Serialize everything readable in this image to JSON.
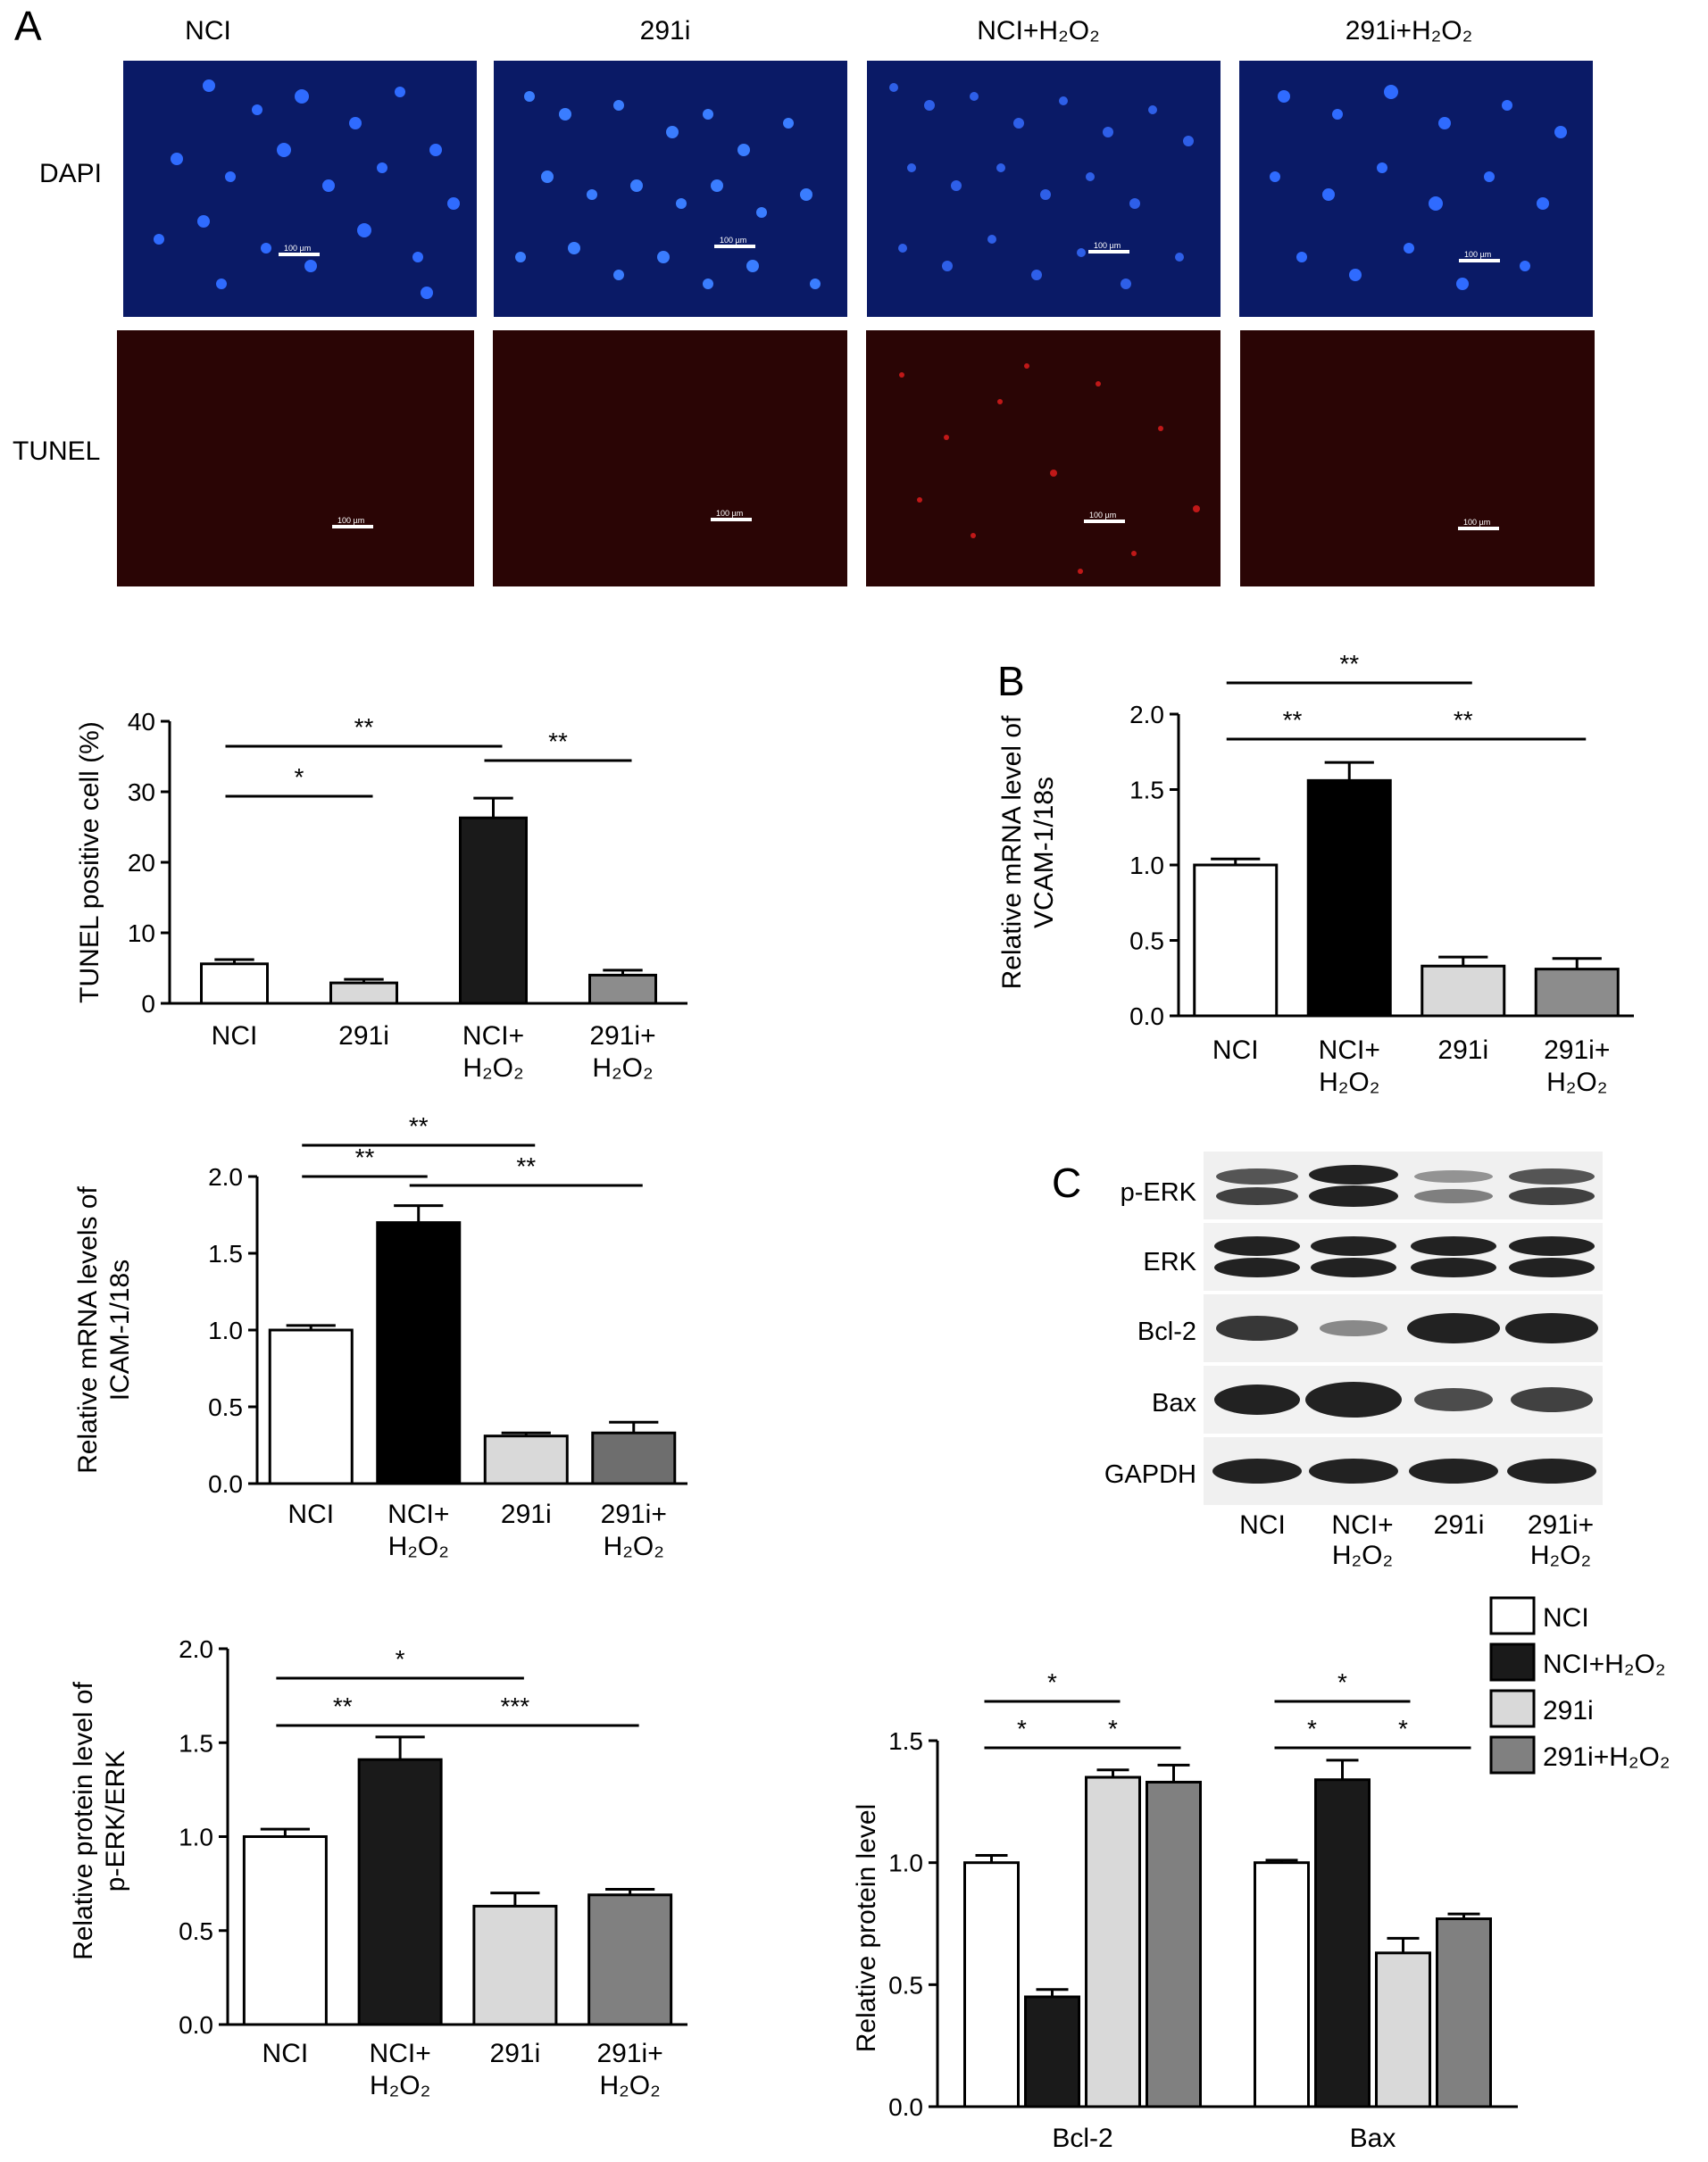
{
  "panels": {
    "a": "A",
    "b": "B",
    "c": "C"
  },
  "micrograph": {
    "columns": [
      "NCI",
      "291i",
      "NCI+H₂O₂",
      "291i+H₂O₂"
    ],
    "rows": [
      "DAPI",
      "TUNEL"
    ],
    "scale_bar": "100 µm",
    "colors": {
      "dapi": "#0a1a66",
      "tunel": "#2a0505"
    }
  },
  "blot": {
    "rows": [
      "p-ERK",
      "ERK",
      "Bcl-2",
      "Bax",
      "GAPDH"
    ],
    "lanes": [
      "NCI",
      "NCI+\nH₂O₂",
      "291i",
      "291i+\nH₂O₂"
    ]
  },
  "chart_data": [
    {
      "id": "tunel",
      "type": "bar",
      "categories": [
        "NCI",
        "291i",
        "NCI+\nH₂O₂",
        "291i+\nH₂O₂"
      ],
      "values": [
        5.6,
        2.9,
        26.3,
        4.0
      ],
      "errors": [
        0.6,
        0.5,
        2.8,
        0.7
      ],
      "colors": [
        "#ffffff",
        "#d9d9d9",
        "#1a1a1a",
        "#8c8c8c"
      ],
      "ylabel": "TUNEL positive cell (%)",
      "ylim": [
        0,
        40
      ],
      "yticks": [
        "0",
        "10",
        "20",
        "30",
        "40"
      ],
      "significance": [
        {
          "from": 0,
          "to": 1,
          "label": "*"
        },
        {
          "from": 0,
          "to": 2,
          "label": "**"
        },
        {
          "from": 2,
          "to": 3,
          "label": "**"
        }
      ]
    },
    {
      "id": "vcam",
      "type": "bar",
      "categories": [
        "NCI",
        "NCI+\nH₂O₂",
        "291i",
        "291i+\nH₂O₂"
      ],
      "values": [
        1.0,
        1.56,
        0.33,
        0.31
      ],
      "errors": [
        0.04,
        0.12,
        0.06,
        0.07
      ],
      "colors": [
        "#ffffff",
        "#000000",
        "#d9d9d9",
        "#8c8c8c"
      ],
      "ylabel": "Relative mRNA level of\nVCAM-1/18s",
      "ylim": [
        0,
        2.0
      ],
      "yticks": [
        "0.0",
        "0.5",
        "1.0",
        "1.5",
        "2.0"
      ],
      "significance": [
        {
          "from": 0,
          "to": 2,
          "label": "**"
        },
        {
          "from": 0,
          "to": 1,
          "label": "**"
        },
        {
          "from": 1,
          "to": 3,
          "label": "**"
        }
      ]
    },
    {
      "id": "icam",
      "type": "bar",
      "categories": [
        "NCI",
        "NCI+\nH₂O₂",
        "291i",
        "291i+\nH₂O₂"
      ],
      "values": [
        1.0,
        1.7,
        0.31,
        0.33
      ],
      "errors": [
        0.03,
        0.11,
        0.02,
        0.07
      ],
      "colors": [
        "#ffffff",
        "#000000",
        "#d9d9d9",
        "#6e6e6e"
      ],
      "ylabel": "Relative mRNA levels of\nICAM-1/18s",
      "ylim": [
        0,
        2.0
      ],
      "yticks": [
        "0.0",
        "0.5",
        "1.0",
        "1.5",
        "2.0"
      ],
      "significance": [
        {
          "from": 0,
          "to": 2,
          "label": "**"
        },
        {
          "from": 0,
          "to": 1,
          "label": "**"
        },
        {
          "from": 1,
          "to": 3,
          "label": "**"
        }
      ]
    },
    {
      "id": "perk",
      "type": "bar",
      "categories": [
        "NCI",
        "NCI+\nH₂O₂",
        "291i",
        "291i+\nH₂O₂"
      ],
      "values": [
        1.0,
        1.41,
        0.63,
        0.69
      ],
      "errors": [
        0.04,
        0.12,
        0.07,
        0.03
      ],
      "colors": [
        "#ffffff",
        "#1a1a1a",
        "#d9d9d9",
        "#808080"
      ],
      "ylabel": "Relative protein level of\np-ERK/ERK",
      "ylim": [
        0,
        2.0
      ],
      "yticks": [
        "0.0",
        "0.5",
        "1.0",
        "1.5",
        "2.0"
      ],
      "significance": [
        {
          "from": 0,
          "to": 2,
          "label": "*"
        },
        {
          "from": 0,
          "to": 1,
          "label": "**"
        },
        {
          "from": 1,
          "to": 3,
          "label": "***"
        }
      ]
    },
    {
      "id": "protein",
      "type": "bar",
      "categories": [
        "Bcl-2",
        "Bax"
      ],
      "series": [
        {
          "name": "NCI",
          "values": [
            1.0,
            1.0
          ],
          "errors": [
            0.03,
            0.01
          ],
          "color": "#ffffff"
        },
        {
          "name": "NCI+H₂O₂",
          "values": [
            0.45,
            1.34
          ],
          "errors": [
            0.03,
            0.08
          ],
          "color": "#1a1a1a"
        },
        {
          "name": "291i",
          "values": [
            1.35,
            0.63
          ],
          "errors": [
            0.03,
            0.06
          ],
          "color": "#d9d9d9"
        },
        {
          "name": "291i+H₂O₂",
          "values": [
            1.33,
            0.77
          ],
          "errors": [
            0.07,
            0.02
          ],
          "color": "#808080"
        }
      ],
      "ylabel": "Relative protein level",
      "ylim": [
        0,
        1.5
      ],
      "yticks": [
        "0.0",
        "0.5",
        "1.0",
        "1.5"
      ],
      "legend": "top-right",
      "significance": [
        {
          "group": 0,
          "from": 0,
          "to": 2,
          "label": "*"
        },
        {
          "group": 0,
          "from": 0,
          "to": 1,
          "label": "*"
        },
        {
          "group": 0,
          "from": 1,
          "to": 3,
          "label": "*"
        },
        {
          "group": 1,
          "from": 0,
          "to": 2,
          "label": "*"
        },
        {
          "group": 1,
          "from": 0,
          "to": 1,
          "label": "*"
        },
        {
          "group": 1,
          "from": 1,
          "to": 3,
          "label": "*"
        }
      ]
    }
  ]
}
